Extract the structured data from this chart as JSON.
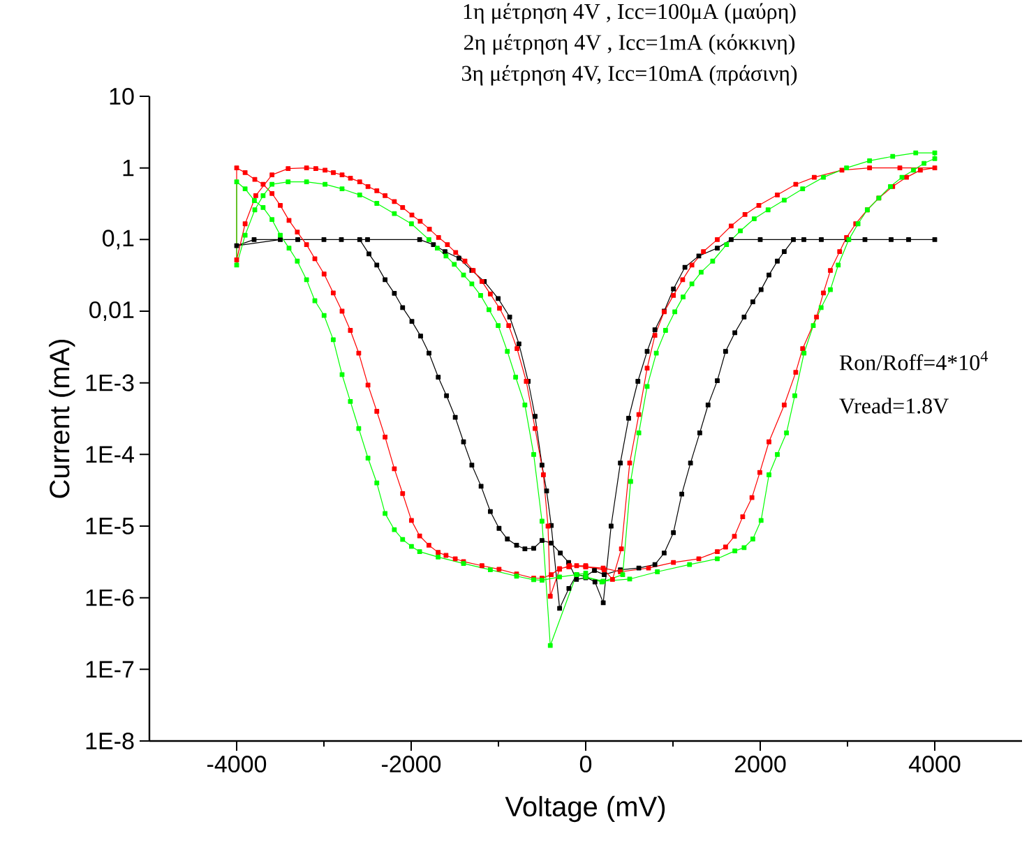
{
  "chart_data": {
    "type": "line",
    "xlabel": "Voltage (mV)",
    "ylabel": "Current (mA)",
    "log": "y",
    "marker": "square",
    "xlim": [
      -5000,
      5000
    ],
    "xticks": [
      -4000,
      -2000,
      0,
      2000,
      4000
    ],
    "ylim": [
      1e-08,
      10
    ],
    "yticks": [
      {
        "value": 1e-08,
        "label": "1E-8"
      },
      {
        "value": 1e-07,
        "label": "1E-7"
      },
      {
        "value": 1e-06,
        "label": "1E-6"
      },
      {
        "value": 1e-05,
        "label": "1E-5"
      },
      {
        "value": 0.0001,
        "label": "1E-4"
      },
      {
        "value": 0.001,
        "label": "1E-3"
      },
      {
        "value": 0.01,
        "label": "0,01"
      },
      {
        "value": 0.1,
        "label": "0,1"
      },
      1,
      10
    ],
    "annotations": [
      "1η μέτρηση 4V , Icc=100μA (μαύρη)",
      "2η μέτρηση 4V , Icc=1mA (κόκκινη)",
      "3η μέτρηση 4V, Icc=10mA (πράσινη)",
      "Ron/Roff=4*10$^{4}$",
      "Vread=1.8V"
    ],
    "series": [
      {
        "color": "#000000",
        "x": [
          0,
          106,
          201,
          291,
          397,
          492,
          598,
          704,
          793,
          899,
          1005,
          1137,
          1296,
          1508,
          1667,
          2000,
          2500,
          3000,
          3500,
          4000,
          3700,
          3200,
          2700,
          2380,
          2275,
          2196,
          2100,
          2010,
          1915,
          1815,
          1709,
          1603,
          1508,
          1402,
          1307,
          1201,
          1101,
          1005,
          899,
          793,
          609,
          397,
          212,
          100,
          0,
          -103,
          -193,
          -299,
          -395,
          -448,
          -501,
          -580,
          -659,
          -765,
          -871,
          -1003,
          -1162,
          -1305,
          -1453,
          -1612,
          -1745,
          -1903,
          -2500,
          -3000,
          -3500,
          -4000,
          -3800,
          -3300,
          -2800,
          -2590,
          -2484,
          -2394,
          -2299,
          -2193,
          -2098,
          -1992,
          -1892,
          -1796,
          -1690,
          -1595,
          -1495,
          -1400,
          -1305,
          -1199,
          -1093,
          -993,
          -898,
          -792,
          -697,
          -596,
          -501,
          -395,
          -291,
          -196,
          -106,
          0
        ],
        "values": [
          1.95e-06,
          1.66e-06,
          8.5e-07,
          1e-05,
          7.6e-05,
          0.00032,
          0.00105,
          0.00275,
          0.0055,
          0.01,
          0.0204,
          0.041,
          0.059,
          0.076,
          0.1,
          0.1,
          0.1,
          0.1,
          0.1,
          0.1,
          0.1,
          0.1,
          0.1,
          0.1,
          0.068,
          0.05,
          0.032,
          0.02,
          0.0135,
          0.0083,
          0.005,
          0.00275,
          0.00107,
          0.00049,
          0.0002,
          7.6e-05,
          2.8e-05,
          8.1e-06,
          4.2e-06,
          2.9e-06,
          2.6e-06,
          2.45e-06,
          2.1e-06,
          2.4e-06,
          2e-06,
          2.1e-06,
          1.35e-06,
          7.1e-07,
          1.02e-05,
          3.1e-05,
          7.1e-05,
          0.00034,
          0.00105,
          0.0035,
          0.0083,
          0.015,
          0.026,
          0.037,
          0.055,
          0.068,
          0.085,
          0.1,
          0.1,
          0.1,
          0.1,
          0.082,
          0.1,
          0.1,
          0.1,
          0.1,
          0.063,
          0.044,
          0.0275,
          0.0178,
          0.0112,
          0.0072,
          0.0045,
          0.0026,
          0.0012,
          0.00066,
          0.00033,
          0.00015,
          7.1e-05,
          3.6e-05,
          1.6e-05,
          9.3e-06,
          6.6e-06,
          5.4e-06,
          4.8e-06,
          4.9e-06,
          6.3e-06,
          5.8e-06,
          4.2e-06,
          3.1e-06,
          1.8e-06,
          1.9e-06
        ]
      },
      {
        "color": "#ff0000",
        "x": [
          0,
          212,
          307,
          409,
          504,
          609,
          704,
          793,
          899,
          1005,
          1111,
          1217,
          1349,
          1508,
          1667,
          1825,
          1984,
          2196,
          2407,
          2619,
          2936,
          3253,
          3600,
          4000,
          3835,
          3676,
          3518,
          3359,
          3227,
          3094,
          2989,
          2910,
          2804,
          2724,
          2645,
          2486,
          2407,
          2275,
          2100,
          1995,
          1905,
          1799,
          1704,
          1603,
          1508,
          1296,
          1005,
          720,
          397,
          200,
          0,
          -185,
          -299,
          -406,
          -432,
          -485,
          -580,
          -681,
          -787,
          -882,
          -988,
          -1093,
          -1189,
          -1289,
          -1384,
          -1490,
          -1585,
          -1686,
          -1791,
          -1897,
          -1992,
          -2098,
          -2193,
          -2299,
          -2394,
          -2495,
          -2590,
          -2696,
          -2792,
          -2892,
          -2987,
          -3093,
          -3199,
          -3410,
          -3595,
          -3781,
          -3903,
          -4000,
          -4000,
          -3903,
          -3792,
          -3697,
          -3595,
          -3500,
          -3400,
          -3305,
          -3199,
          -3104,
          -2998,
          -2893,
          -2792,
          -2697,
          -2601,
          -2495,
          -2394,
          -2299,
          -2193,
          -2098,
          -1997,
          -1903,
          -1797,
          -1691,
          -1601,
          -1495,
          -1400,
          -1189,
          -993,
          -792,
          -596,
          -501,
          -395,
          -300,
          -194,
          -104,
          0
        ],
        "values": [
          2.7e-06,
          2.45e-06,
          1.8e-06,
          4.8e-06,
          7.6e-05,
          0.00036,
          0.0016,
          0.0046,
          0.0098,
          0.0166,
          0.0275,
          0.044,
          0.068,
          0.1,
          0.155,
          0.224,
          0.3,
          0.42,
          0.59,
          0.74,
          0.93,
          1.0,
          1.0,
          1.0,
          0.93,
          0.74,
          0.55,
          0.38,
          0.26,
          0.166,
          0.107,
          0.068,
          0.037,
          0.018,
          0.0083,
          0.003,
          0.0014,
          0.00049,
          0.00015,
          5.6e-05,
          2.5e-05,
          1.35e-05,
          7.2e-06,
          5.1e-06,
          4.4e-06,
          3.5e-06,
          3.1e-06,
          2.6e-06,
          2.3e-06,
          2.6e-06,
          2.7e-06,
          2.8e-06,
          2.5e-06,
          1.05e-06,
          1e-05,
          5.2e-05,
          0.00023,
          0.00105,
          0.003,
          0.0063,
          0.011,
          0.0174,
          0.026,
          0.037,
          0.05,
          0.066,
          0.085,
          0.107,
          0.14,
          0.18,
          0.22,
          0.28,
          0.34,
          0.41,
          0.48,
          0.55,
          0.64,
          0.72,
          0.8,
          0.86,
          0.93,
          0.98,
          1.0,
          0.98,
          0.8,
          0.41,
          0.166,
          0.052,
          1.0,
          0.86,
          0.69,
          0.59,
          0.44,
          0.3,
          0.185,
          0.127,
          0.085,
          0.054,
          0.033,
          0.018,
          0.01,
          0.0054,
          0.0026,
          0.00093,
          0.0004,
          0.000175,
          6.3e-05,
          2.85e-05,
          1.2e-05,
          7.3e-06,
          5.4e-06,
          4.3e-06,
          3.9e-06,
          3.5e-06,
          3.2e-06,
          2.8e-06,
          2.5e-06,
          2.15e-06,
          1.87e-06,
          1.87e-06,
          2.1e-06,
          2.55e-06,
          2.7e-06,
          2.8e-06,
          2.8e-06
        ]
      },
      {
        "color": "#00ff00",
        "x": [
          0,
          185,
          424,
          515,
          609,
          704,
          809,
          915,
          1021,
          1116,
          1217,
          1323,
          1455,
          1614,
          1772,
          1931,
          2090,
          2275,
          2486,
          2724,
          2989,
          3253,
          3518,
          3782,
          4000,
          4000,
          3877,
          3756,
          3624,
          3492,
          3359,
          3227,
          3121,
          3015,
          2894,
          2804,
          2698,
          2608,
          2502,
          2396,
          2301,
          2196,
          2100,
          2010,
          1915,
          1815,
          1709,
          1508,
          1190,
          821,
          504,
          200,
          0,
          -106,
          -406,
          -501,
          -596,
          -697,
          -803,
          -898,
          -1003,
          -1109,
          -1204,
          -1305,
          -1400,
          -1506,
          -1601,
          -1701,
          -1797,
          -1997,
          -2193,
          -2394,
          -2590,
          -2792,
          -2987,
          -3199,
          -3410,
          -3595,
          -3697,
          -3792,
          -3903,
          -4000,
          -4000,
          -3903,
          -3797,
          -3697,
          -3595,
          -3500,
          -3400,
          -3305,
          -3199,
          -3104,
          -2998,
          -2893,
          -2792,
          -2697,
          -2601,
          -2495,
          -2394,
          -2299,
          -2193,
          -2098,
          -1997,
          -1903,
          -1691,
          -1400,
          -1093,
          -792,
          -596,
          -501,
          -300,
          -104,
          0
        ],
        "values": [
          1.95e-06,
          1.66e-06,
          2.1e-06,
          4.2e-05,
          0.0002,
          0.00089,
          0.0026,
          0.0054,
          0.0098,
          0.0158,
          0.024,
          0.035,
          0.05,
          0.085,
          0.132,
          0.195,
          0.26,
          0.355,
          0.51,
          0.74,
          1.0,
          1.26,
          1.45,
          1.62,
          1.62,
          1.35,
          1.16,
          0.93,
          0.74,
          0.55,
          0.38,
          0.26,
          0.166,
          0.1,
          0.044,
          0.02,
          0.0112,
          0.0063,
          0.0026,
          0.00066,
          0.0002,
          0.0001,
          5.2e-05,
          1.2e-05,
          6.6e-06,
          5e-06,
          4.5e-06,
          3.5e-06,
          2.9e-06,
          2.3e-06,
          1.82e-06,
          1.7e-06,
          1.95e-06,
          2.1e-06,
          2.15e-07,
          1.17e-05,
          0.0001,
          0.00049,
          0.0012,
          0.00275,
          0.0063,
          0.0105,
          0.0166,
          0.024,
          0.032,
          0.045,
          0.059,
          0.076,
          0.1,
          0.166,
          0.23,
          0.32,
          0.42,
          0.51,
          0.59,
          0.64,
          0.64,
          0.59,
          0.41,
          0.26,
          0.115,
          0.044,
          0.64,
          0.51,
          0.35,
          0.28,
          0.19,
          0.115,
          0.076,
          0.05,
          0.0275,
          0.014,
          0.0087,
          0.004,
          0.0013,
          0.00055,
          0.00023,
          8.9e-05,
          4e-05,
          1.5e-05,
          8.9e-06,
          6.5e-06,
          5.2e-06,
          4.4e-06,
          3.7e-06,
          3e-06,
          2.45e-06,
          2e-06,
          1.78e-06,
          1.75e-06,
          1.95e-06,
          2.1e-06,
          2.2e-06
        ]
      }
    ]
  }
}
